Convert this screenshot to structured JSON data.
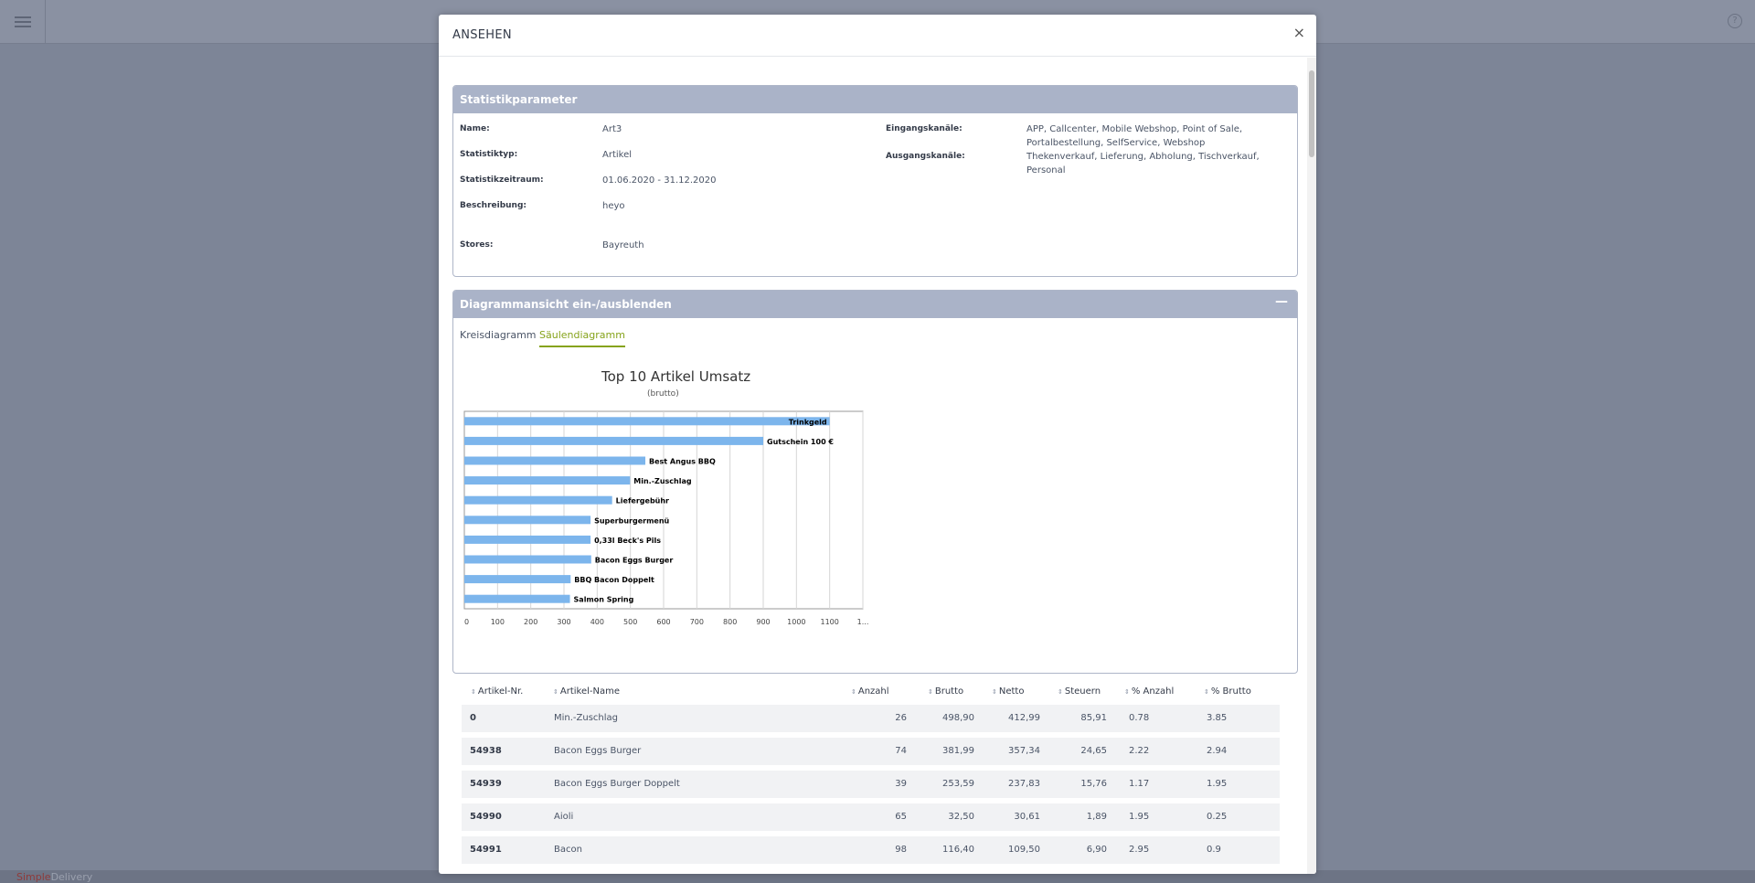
{
  "background": {
    "footer_brand_a": "Simple",
    "footer_brand_b": "Delivery",
    "help_icon_glyph": "?"
  },
  "modal": {
    "title": "ANSEHEN",
    "close_glyph": "×"
  },
  "params_panel": {
    "title": "Statistikparameter",
    "fields": {
      "name_label": "Name:",
      "name_value": "Art3",
      "type_label": "Statistiktyp:",
      "type_value": "Artikel",
      "period_label": "Statistikzeitraum:",
      "period_value": "01.06.2020 - 31.12.2020",
      "description_label": "Beschreibung:",
      "description_value": "heyo",
      "stores_label": "Stores:",
      "stores_value": "Bayreuth",
      "input_channels_label": "Eingangskanäle:",
      "input_channels_line1": "APP, Callcenter, Mobile Webshop, Point of Sale,",
      "input_channels_line2": "Portalbestellung, SelfService, Webshop",
      "output_channels_label": "Ausgangskanäle:",
      "output_channels_value": "Thekenverkauf, Lieferung, Abholung, Tischverkauf, Personal"
    }
  },
  "chart_panel": {
    "title": "Diagrammansicht ein-/ausblenden",
    "toggle_glyph": "—",
    "tabs": [
      {
        "label": "Kreisdiagramm",
        "active": false
      },
      {
        "label": "Säulendiagramm",
        "active": true
      }
    ]
  },
  "chart_data": {
    "type": "bar",
    "orientation": "horizontal",
    "title": "Top 10 Artikel Umsatz",
    "subtitle": "(brutto)",
    "categories": [
      "Trinkgeld",
      "Gutschein 100 €",
      "Best Angus BBQ",
      "Min.-Zuschlag",
      "Liefergebühr",
      "Superburgermenü",
      "0,33l Beck's Pils",
      "Bacon Eggs Burger",
      "BBQ Bacon Doppelt",
      "Salmon Spring"
    ],
    "values": [
      1100,
      900,
      545,
      498.9,
      445,
      380,
      380,
      381.99,
      320,
      318
    ],
    "xlim": [
      0,
      1200
    ],
    "x_ticks": [
      "0",
      "100",
      "200",
      "300",
      "400",
      "500",
      "600",
      "700",
      "800",
      "900",
      "1000",
      "1100",
      "1..."
    ],
    "grid": true,
    "bar_color": "#7cb5ec"
  },
  "table": {
    "columns": [
      {
        "label": "Artikel-Nr.",
        "sort_glyph": "⇕"
      },
      {
        "label": "Artikel-Name",
        "sort_glyph": "⇕"
      },
      {
        "label": "Anzahl",
        "sort_glyph": "⇕"
      },
      {
        "label": "Brutto",
        "sort_glyph": "⇕"
      },
      {
        "label": "Netto",
        "sort_glyph": "⇕"
      },
      {
        "label": "Steuern",
        "sort_glyph": "⇕"
      },
      {
        "label": "% Anzahl",
        "sort_glyph": "⇕"
      },
      {
        "label": "% Brutto",
        "sort_glyph": "⇕"
      }
    ],
    "rows": [
      {
        "nr": "0",
        "name": "Min.-Zuschlag",
        "anzahl": "26",
        "brutto": "498,90",
        "netto": "412,99",
        "steuern": "85,91",
        "pct_anzahl": "0.78",
        "pct_brutto": "3.85"
      },
      {
        "nr": "54938",
        "name": "Bacon Eggs Burger",
        "anzahl": "74",
        "brutto": "381,99",
        "netto": "357,34",
        "steuern": "24,65",
        "pct_anzahl": "2.22",
        "pct_brutto": "2.94"
      },
      {
        "nr": "54939",
        "name": "Bacon Eggs Burger Doppelt",
        "anzahl": "39",
        "brutto": "253,59",
        "netto": "237,83",
        "steuern": "15,76",
        "pct_anzahl": "1.17",
        "pct_brutto": "1.95"
      },
      {
        "nr": "54990",
        "name": "Aioli",
        "anzahl": "65",
        "brutto": "32,50",
        "netto": "30,61",
        "steuern": "1,89",
        "pct_anzahl": "1.95",
        "pct_brutto": "0.25"
      },
      {
        "nr": "54991",
        "name": "Bacon",
        "anzahl": "98",
        "brutto": "116,40",
        "netto": "109,50",
        "steuern": "6,90",
        "pct_anzahl": "2.95",
        "pct_brutto": "0.9"
      }
    ]
  }
}
